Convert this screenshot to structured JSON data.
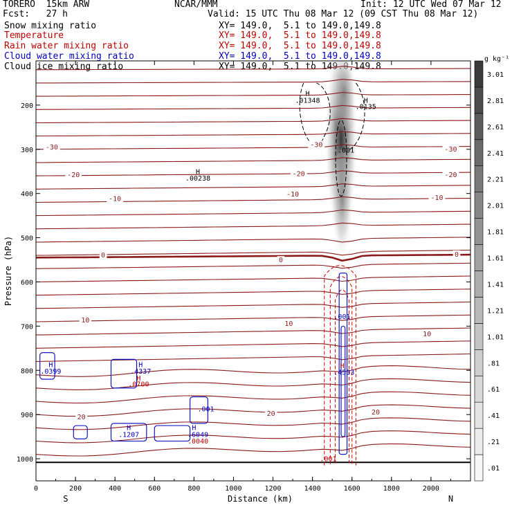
{
  "header": {
    "model": "TORERO  15km ARW",
    "org": "NCAR/MMM",
    "init": "Init: 12 UTC Wed 07 Mar 12",
    "fcst": "Fcst:   27 h",
    "valid": "Valid: 15 UTC Thu 08 Mar 12 (09 CST Thu 08 Mar 12)",
    "fields": [
      {
        "name": "Snow mixing ratio",
        "xs": "XY= 149.0,  5.1 to 149.0,149.8",
        "color": "#000000"
      },
      {
        "name": "Temperature",
        "xs": "XY= 149.0,  5.1 to 149.0,149.8",
        "color": "#c00000"
      },
      {
        "name": "Rain water mixing ratio",
        "xs": "XY= 149.0,  5.1 to 149.0,149.8",
        "color": "#c00000"
      },
      {
        "name": "Cloud water mixing ratio",
        "xs": "XY= 149.0,  5.1 to 149.0,149.8",
        "color": "#0000c0"
      },
      {
        "name": "Cloud ice mixing ratio",
        "xs": "XY= 149.0,  5.1 to 149.0,149.8",
        "color": "#000000"
      }
    ]
  },
  "chart_data": {
    "type": "contour",
    "xlabel": "Distance (km)",
    "ylabel": "Pressure (hPa)",
    "xlim": [
      0,
      2200
    ],
    "ylim": [
      1050,
      100
    ],
    "x_ticks": [
      0,
      200,
      400,
      600,
      800,
      1000,
      1200,
      1400,
      1600,
      1800,
      2000
    ],
    "y_ticks": [
      200,
      300,
      400,
      500,
      600,
      700,
      800,
      900,
      1000
    ],
    "x_end_labels": {
      "left": "S",
      "right": "N"
    },
    "colorbar": {
      "unit": "g kg⁻¹",
      "levels": [
        ".01",
        ".21",
        ".41",
        ".61",
        ".81",
        "1.01",
        "1.21",
        "1.41",
        "1.61",
        "1.81",
        "2.01",
        "2.21",
        "2.41",
        "2.61",
        "2.81",
        "3.01"
      ],
      "colors": [
        "#f7f7f7",
        "#ededed",
        "#e3e3e3",
        "#d9d9d9",
        "#cfcfcf",
        "#c4c4c4",
        "#b9b9b9",
        "#adadad",
        "#a1a1a1",
        "#949494",
        "#878787",
        "#797979",
        "#6b6b6b",
        "#5c5c5c",
        "#4c4c4c",
        "#3b3b3b"
      ]
    },
    "temperature_labels": [
      {
        "text": "-30",
        "x": 80,
        "p": 296
      },
      {
        "text": "-30",
        "x": 1420,
        "p": 290
      },
      {
        "text": "-30",
        "x": 2100,
        "p": 300
      },
      {
        "text": "-20",
        "x": 190,
        "p": 358
      },
      {
        "text": "-20",
        "x": 1330,
        "p": 356
      },
      {
        "text": "-20",
        "x": 2100,
        "p": 358
      },
      {
        "text": "-10",
        "x": 400,
        "p": 412
      },
      {
        "text": "-10",
        "x": 1300,
        "p": 402
      },
      {
        "text": "-10",
        "x": 2030,
        "p": 410
      },
      {
        "text": "0",
        "x": 340,
        "p": 540
      },
      {
        "text": "0",
        "x": 1240,
        "p": 551
      },
      {
        "text": "0",
        "x": 2130,
        "p": 538
      },
      {
        "text": "10",
        "x": 250,
        "p": 687
      },
      {
        "text": "10",
        "x": 1280,
        "p": 695
      },
      {
        "text": "10",
        "x": 1980,
        "p": 718
      },
      {
        "text": "20",
        "x": 230,
        "p": 906
      },
      {
        "text": "20",
        "x": 1190,
        "p": 898
      },
      {
        "text": "20",
        "x": 1720,
        "p": 895
      }
    ],
    "extrema_labels": [
      {
        "text": "H",
        "x": 1375,
        "p": 174,
        "color": "#000000"
      },
      {
        "text": ".01348",
        "x": 1375,
        "p": 190,
        "color": "#000000"
      },
      {
        "text": "H",
        "x": 1670,
        "p": 190,
        "color": "#000000"
      },
      {
        "text": ".0135",
        "x": 1670,
        "p": 204,
        "color": "#000000"
      },
      {
        "text": ".001",
        "x": 1570,
        "p": 303,
        "color": "#000000"
      },
      {
        "text": "H",
        "x": 820,
        "p": 351,
        "color": "#000000"
      },
      {
        "text": ".00238",
        "x": 820,
        "p": 366,
        "color": "#000000"
      },
      {
        "text": ".001",
        "x": 1550,
        "p": 679,
        "color": "#0000c0"
      },
      {
        "text": "H",
        "x": 75,
        "p": 788,
        "color": "#0000c0"
      },
      {
        "text": ".0399",
        "x": 75,
        "p": 803,
        "color": "#0000c0"
      },
      {
        "text": "H",
        "x": 530,
        "p": 788,
        "color": "#0000c0"
      },
      {
        "text": ".4337",
        "x": 530,
        "p": 803,
        "color": "#0000c0"
      },
      {
        "text": "H",
        "x": 520,
        "p": 818,
        "color": "#c00000"
      },
      {
        "text": ".0700",
        "x": 520,
        "p": 832,
        "color": "#c00000"
      },
      {
        "text": "H",
        "x": 1550,
        "p": 790,
        "color": "#c00000"
      },
      {
        "text": ".4503",
        "x": 1560,
        "p": 805,
        "color": "#0000c0"
      },
      {
        "text": ".001",
        "x": 860,
        "p": 888,
        "color": "#0000c0"
      },
      {
        "text": "H",
        "x": 800,
        "p": 930,
        "color": "#0000c0"
      },
      {
        "text": ".6049",
        "x": 820,
        "p": 946,
        "color": "#0000c0"
      },
      {
        "text": "H",
        "x": 470,
        "p": 930,
        "color": "#0000c0"
      },
      {
        "text": ".1207",
        "x": 470,
        "p": 946,
        "color": "#0000c0"
      },
      {
        "text": ".0040",
        "x": 820,
        "p": 961,
        "color": "#c00000"
      },
      {
        "text": ".001",
        "x": 1480,
        "p": 1001,
        "color": "#c00000"
      }
    ]
  }
}
